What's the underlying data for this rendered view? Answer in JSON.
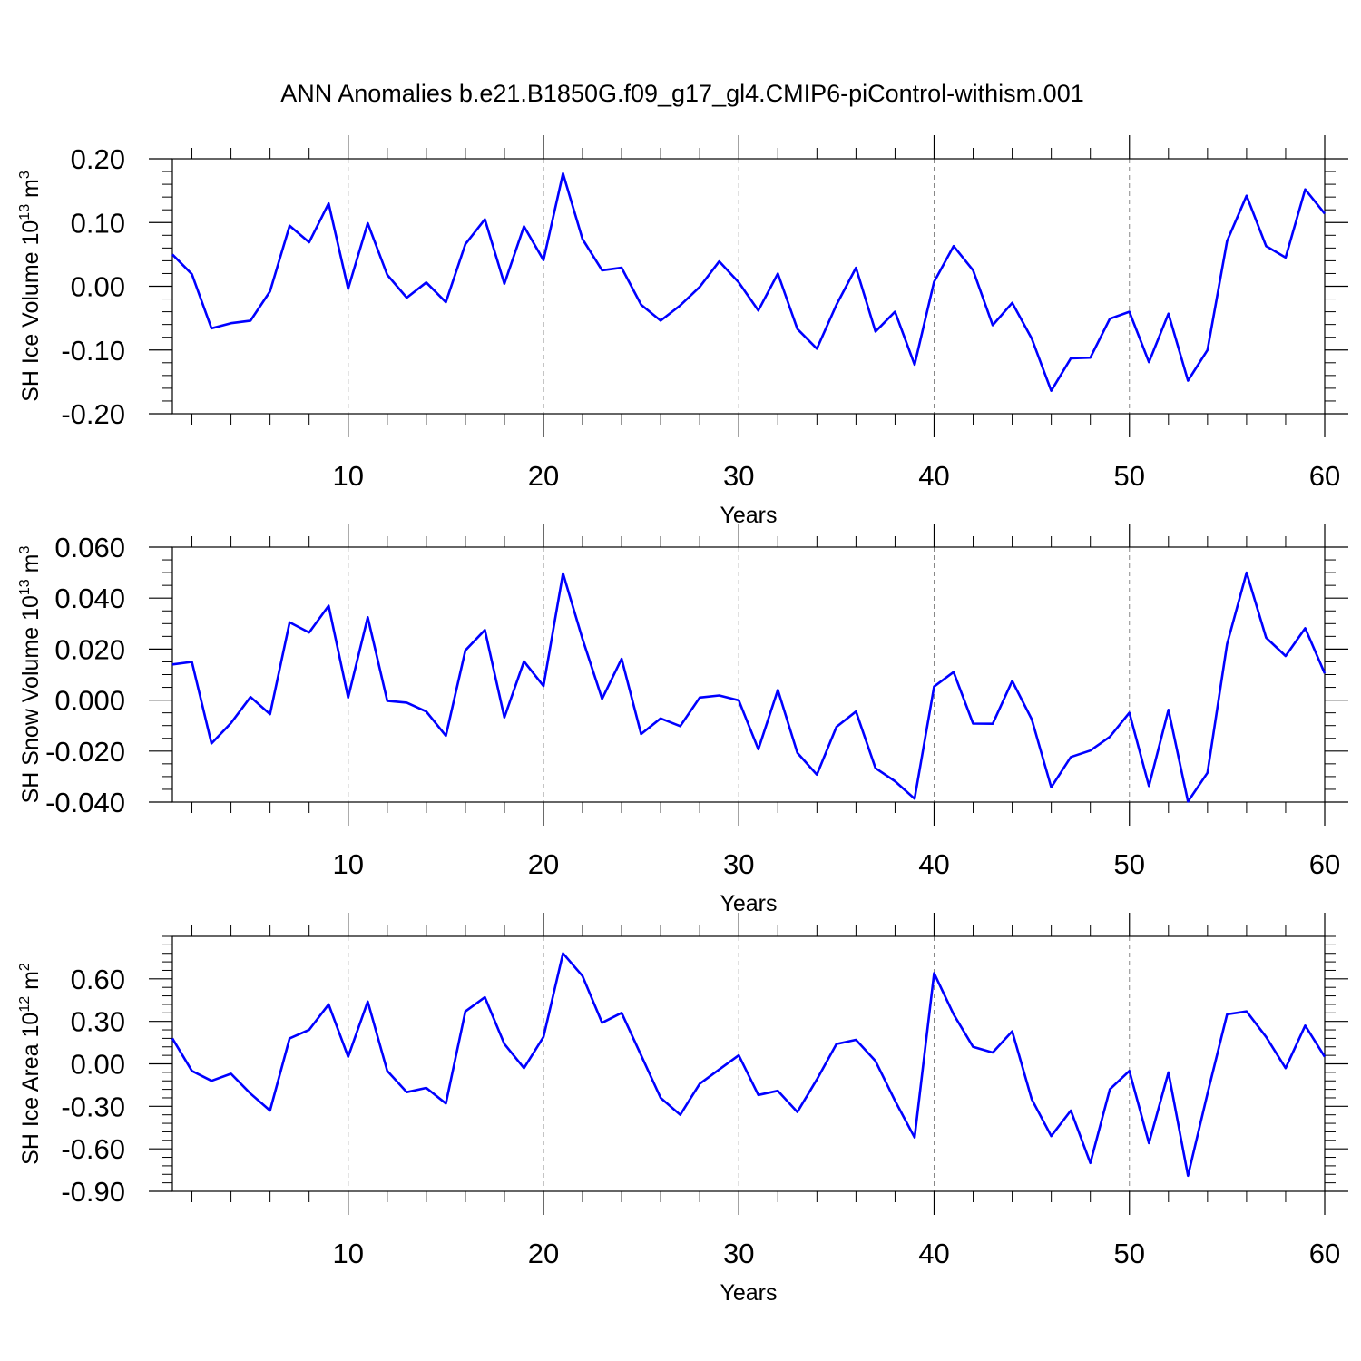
{
  "title": "ANN Anomalies b.e21.B1850G.f09_g17_gl4.CMIP6-piControl-withism.001",
  "colors": {
    "line": "#0000ff",
    "axis": "#000000",
    "grid": "#888888",
    "background": "#ffffff"
  },
  "chart_data": [
    {
      "type": "line",
      "ylabel_main": "SH Ice Volume 10",
      "ylabel_exp": "13",
      "ylabel_unit": " m",
      "ylabel_unit_exp": "3",
      "xlabel": "Years",
      "xlim": [
        1,
        60
      ],
      "ylim": [
        -0.2,
        0.2
      ],
      "xticks": [
        10,
        20,
        30,
        40,
        50,
        60
      ],
      "xtick_labels": [
        "10",
        "20",
        "30",
        "40",
        "50",
        "60"
      ],
      "yticks": [
        -0.2,
        -0.1,
        0.0,
        0.1,
        0.2
      ],
      "ytick_labels": [
        "-0.20",
        "-0.10",
        "0.00",
        "0.10",
        "0.20"
      ],
      "ytick_minor_step": 0.02,
      "grid": "vertical dashed at major x ticks",
      "series": [
        {
          "values": [
            0.05,
            0.019,
            -0.066,
            -0.058,
            -0.054,
            -0.008,
            0.095,
            0.069,
            0.13,
            -0.004,
            0.099,
            0.018,
            -0.018,
            0.006,
            -0.025,
            0.066,
            0.105,
            0.004,
            0.094,
            0.041,
            0.177,
            0.074,
            0.025,
            0.029,
            -0.029,
            -0.054,
            -0.03,
            -0.001,
            0.039,
            0.006,
            -0.038,
            0.02,
            -0.067,
            -0.098,
            -0.029,
            0.029,
            -0.071,
            -0.04,
            -0.123,
            0.007,
            0.063,
            0.025,
            -0.061,
            -0.026,
            -0.082,
            -0.164,
            -0.113,
            -0.112,
            -0.051,
            -0.04,
            -0.119,
            -0.043,
            -0.148,
            -0.1,
            0.071,
            0.142,
            0.063,
            0.045,
            0.152,
            0.114
          ]
        }
      ]
    },
    {
      "type": "line",
      "ylabel_main": "SH Snow Volume 10",
      "ylabel_exp": "13",
      "ylabel_unit": " m",
      "ylabel_unit_exp": "3",
      "xlabel": "Years",
      "xlim": [
        1,
        60
      ],
      "ylim": [
        -0.04,
        0.06
      ],
      "xticks": [
        10,
        20,
        30,
        40,
        50,
        60
      ],
      "xtick_labels": [
        "10",
        "20",
        "30",
        "40",
        "50",
        "60"
      ],
      "yticks": [
        -0.04,
        -0.02,
        0.0,
        0.02,
        0.04,
        0.06
      ],
      "ytick_labels": [
        "-0.040",
        "-0.020",
        "0.000",
        "0.020",
        "0.040",
        "0.060"
      ],
      "ytick_minor_step": 0.005,
      "grid": "vertical dashed at major x ticks",
      "series": [
        {
          "values": [
            0.014,
            0.015,
            -0.017,
            -0.009,
            0.0012,
            -0.0055,
            0.0305,
            0.0265,
            0.037,
            0.001,
            0.0325,
            -0.0003,
            -0.001,
            -0.0045,
            -0.014,
            0.0195,
            0.0275,
            -0.0068,
            0.0152,
            0.0055,
            0.0497,
            0.024,
            0.0005,
            0.0162,
            -0.0133,
            -0.0072,
            -0.0102,
            0.001,
            0.0018,
            -0.0001,
            -0.0193,
            0.004,
            -0.0207,
            -0.0292,
            -0.0105,
            -0.0045,
            -0.0267,
            -0.0318,
            -0.0387,
            0.0053,
            0.011,
            -0.0092,
            -0.0093,
            0.0075,
            -0.0075,
            -0.0342,
            -0.0223,
            -0.0198,
            -0.0144,
            -0.005,
            -0.0337,
            -0.0038,
            -0.0398,
            -0.0285,
            0.022,
            0.05,
            0.0245,
            0.0173,
            0.0282,
            0.0105
          ]
        }
      ]
    },
    {
      "type": "line",
      "ylabel_main": "SH Ice Area 10",
      "ylabel_exp": "12",
      "ylabel_unit": " m",
      "ylabel_unit_exp": "2",
      "xlabel": "Years",
      "xlim": [
        1,
        60
      ],
      "ylim": [
        -0.9,
        0.9
      ],
      "xticks": [
        10,
        20,
        30,
        40,
        50,
        60
      ],
      "xtick_labels": [
        "10",
        "20",
        "30",
        "40",
        "50",
        "60"
      ],
      "yticks": [
        -0.9,
        -0.6,
        -0.3,
        0.0,
        0.3,
        0.6
      ],
      "ytick_labels": [
        "-0.90",
        "-0.60",
        "-0.30",
        "0.00",
        "0.30",
        "0.60"
      ],
      "ytick_minor_step": 0.06,
      "grid": "vertical dashed at major x ticks",
      "series": [
        {
          "values": [
            0.18,
            -0.05,
            -0.12,
            -0.07,
            -0.21,
            -0.33,
            0.18,
            0.24,
            0.42,
            0.05,
            0.44,
            -0.05,
            -0.2,
            -0.17,
            -0.28,
            0.37,
            0.47,
            0.14,
            -0.03,
            0.19,
            0.78,
            0.62,
            0.29,
            0.36,
            0.06,
            -0.24,
            -0.36,
            -0.14,
            -0.04,
            0.06,
            -0.22,
            -0.19,
            -0.34,
            -0.11,
            0.14,
            0.17,
            0.02,
            -0.26,
            -0.52,
            0.64,
            0.35,
            0.12,
            0.08,
            0.23,
            -0.25,
            -0.51,
            -0.33,
            -0.7,
            -0.18,
            -0.05,
            -0.56,
            -0.06,
            -0.79,
            -0.21,
            0.35,
            0.37,
            0.19,
            -0.03,
            0.27,
            0.05
          ]
        }
      ]
    }
  ]
}
